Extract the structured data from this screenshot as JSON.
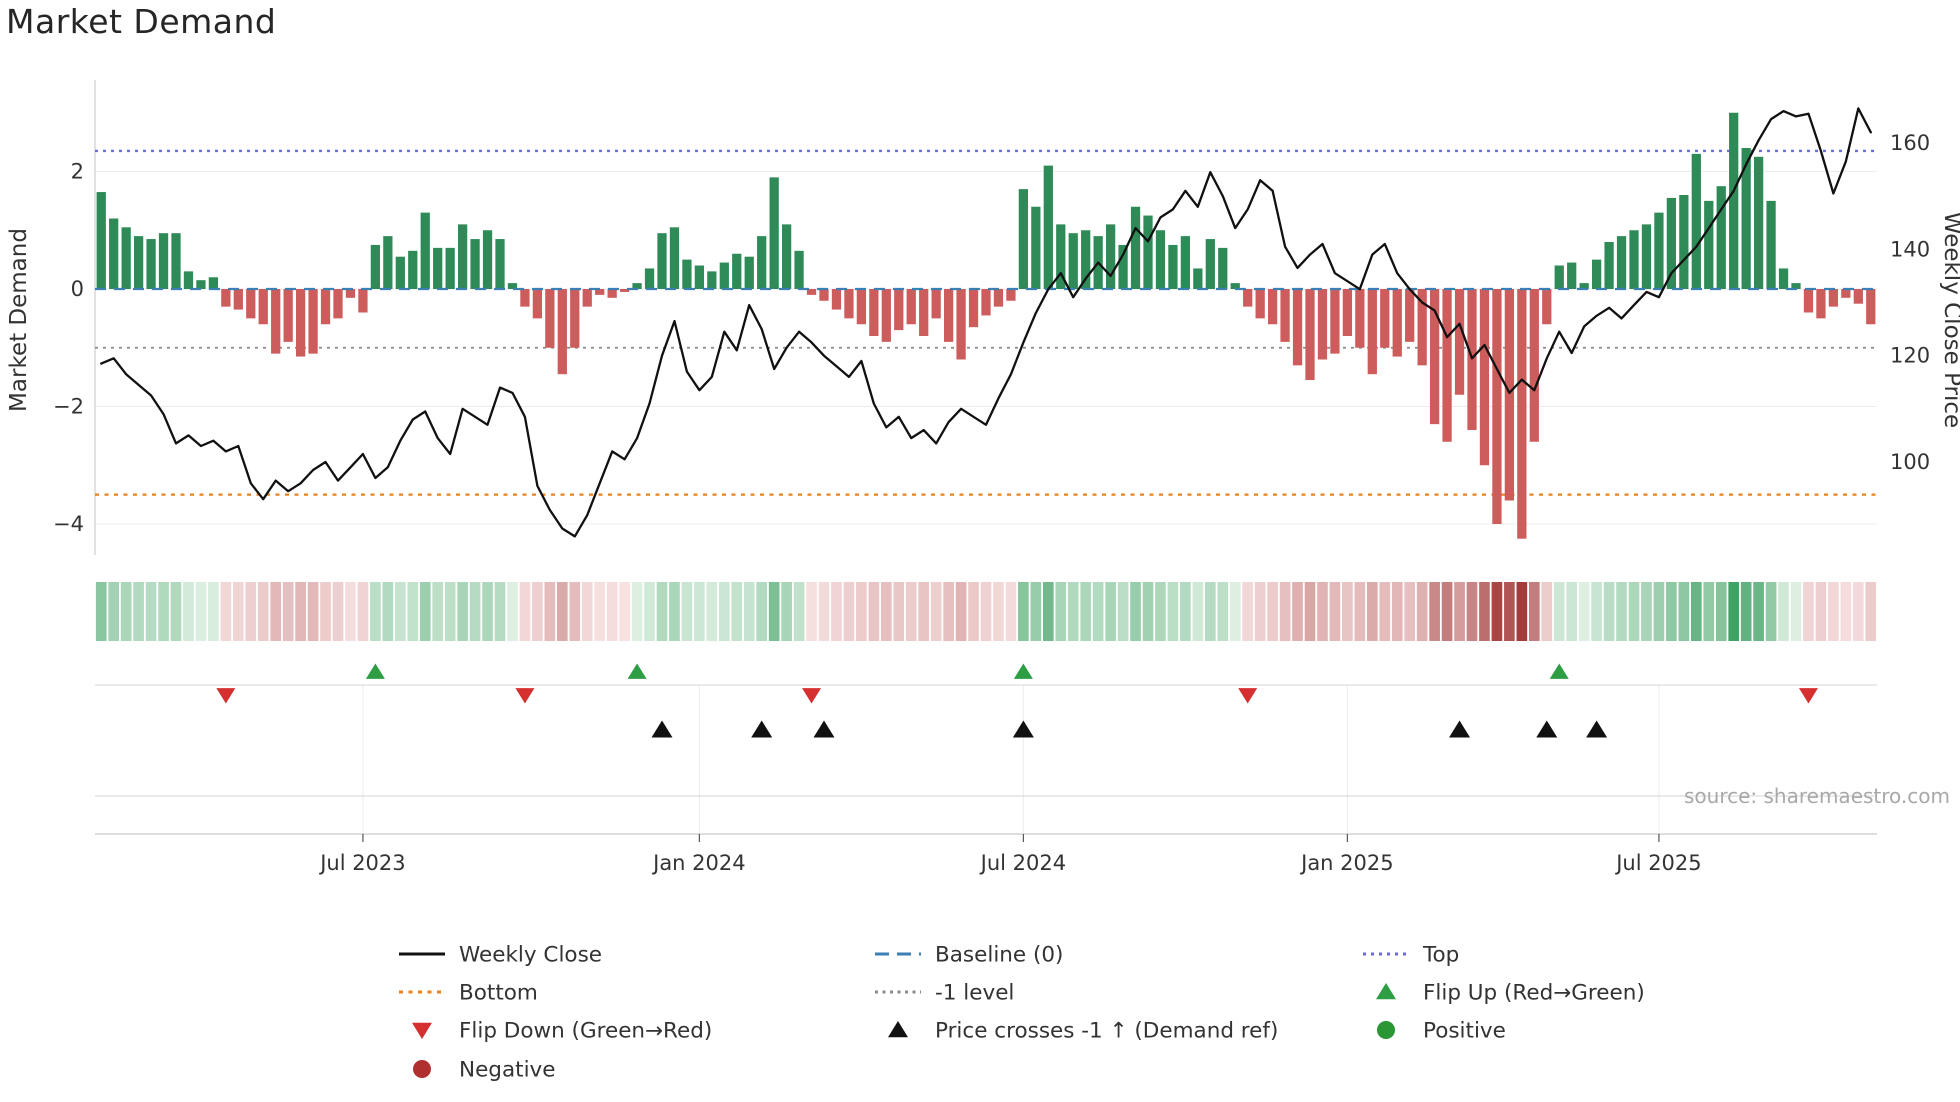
{
  "title": "Market Demand",
  "source_text": "source: sharemaestro.com",
  "axes": {
    "left_label": "Market Demand",
    "right_label": "Weekly Close Price",
    "left_ticks": [
      {
        "value": 2,
        "label": "2"
      },
      {
        "value": 0,
        "label": "0"
      },
      {
        "value": -2,
        "label": "−2"
      },
      {
        "value": -4,
        "label": "−4"
      }
    ],
    "right_ticks": [
      {
        "value": 160,
        "label": "160"
      },
      {
        "value": 140,
        "label": "140"
      },
      {
        "value": 120,
        "label": "120"
      },
      {
        "value": 100,
        "label": "100"
      }
    ],
    "x_ticks": [
      {
        "index": 21,
        "label": "Jul 2023"
      },
      {
        "index": 48,
        "label": "Jan 2024"
      },
      {
        "index": 74,
        "label": "Jul 2024"
      },
      {
        "index": 100,
        "label": "Jan 2025"
      },
      {
        "index": 125,
        "label": "Jul 2025"
      }
    ],
    "ylim_left": [
      -4.6,
      3.5
    ],
    "ylim_right": [
      82,
      172
    ],
    "grid": "horizontal-on"
  },
  "colors": {
    "bar_positive": "#2e8b57",
    "bar_negative": "#cd5c5c",
    "price_line": "#111111",
    "baseline": "#3b7fb5",
    "top_line": "#6b6bdb",
    "bottom_line": "#e8821c",
    "minus1_line": "#8a8a8a",
    "flip_up": "#2e9e44",
    "flip_down": "#d62f2f",
    "price_cross": "#111111",
    "positive_dot": "#2a9634",
    "negative_dot": "#b03030",
    "heat_pos_low": "#e3f2e6",
    "heat_pos_high": "#41a266",
    "heat_neg_low": "#f8e3e3",
    "heat_neg_high": "#a33c3c",
    "grid": "#ececec",
    "spine": "#cfcfcf",
    "tick_text": "#333333",
    "source_text": "#a8a8a8"
  },
  "chart_data": {
    "type": "combo",
    "n_points": 143,
    "legend_position": "bottom",
    "series": [
      {
        "name": "Market Demand",
        "type": "bar",
        "axis": "left",
        "values": [
          1.65,
          1.2,
          1.05,
          0.9,
          0.85,
          0.95,
          0.95,
          0.3,
          0.15,
          0.2,
          -0.3,
          -0.35,
          -0.5,
          -0.6,
          -1.1,
          -0.9,
          -1.15,
          -1.1,
          -0.6,
          -0.5,
          -0.15,
          -0.4,
          0.75,
          0.9,
          0.55,
          0.65,
          1.3,
          0.7,
          0.7,
          1.1,
          0.85,
          1.0,
          0.85,
          0.1,
          -0.3,
          -0.5,
          -1.0,
          -1.45,
          -1.0,
          -0.3,
          -0.1,
          -0.15,
          -0.05,
          0.1,
          0.35,
          0.95,
          1.05,
          0.5,
          0.4,
          0.3,
          0.45,
          0.6,
          0.55,
          0.9,
          1.9,
          1.1,
          0.65,
          -0.1,
          -0.2,
          -0.35,
          -0.5,
          -0.6,
          -0.8,
          -0.9,
          -0.7,
          -0.6,
          -0.8,
          -0.5,
          -0.9,
          -1.2,
          -0.65,
          -0.45,
          -0.3,
          -0.2,
          1.7,
          1.4,
          2.1,
          1.1,
          0.95,
          1.0,
          0.9,
          1.1,
          0.75,
          1.4,
          1.25,
          1.0,
          0.75,
          0.9,
          0.35,
          0.85,
          0.7,
          0.1,
          -0.3,
          -0.5,
          -0.6,
          -0.9,
          -1.3,
          -1.55,
          -1.2,
          -1.1,
          -0.8,
          -1.0,
          -1.45,
          -1.0,
          -1.15,
          -0.9,
          -1.3,
          -2.3,
          -2.6,
          -1.8,
          -2.4,
          -3.0,
          -4.0,
          -3.6,
          -4.25,
          -2.6,
          -0.6,
          0.4,
          0.45,
          0.1,
          0.5,
          0.8,
          0.9,
          1.0,
          1.1,
          1.3,
          1.55,
          1.6,
          2.3,
          1.5,
          1.75,
          3.0,
          2.4,
          2.25,
          1.5,
          0.35,
          0.1,
          -0.4,
          -0.5,
          -0.3,
          -0.15,
          -0.25,
          -0.6
        ]
      },
      {
        "name": "Weekly Close",
        "type": "line",
        "axis": "right",
        "values": [
          118.5,
          119.5,
          116.5,
          114.5,
          112.5,
          109,
          103.5,
          105,
          103,
          104,
          102,
          103,
          96,
          93,
          96.5,
          94.5,
          96,
          98.5,
          100,
          96.5,
          99,
          101.5,
          97,
          99,
          104,
          108,
          109.5,
          104.5,
          101.5,
          110,
          108.5,
          107,
          114,
          113,
          108.5,
          95.5,
          91,
          87.5,
          86,
          90,
          96,
          102,
          100.5,
          104.5,
          111,
          120,
          126.5,
          117,
          113.5,
          116,
          124.5,
          121,
          129.5,
          125,
          117.5,
          121.5,
          124.5,
          122.5,
          120,
          118,
          116,
          119,
          111,
          106.5,
          108.5,
          104.5,
          106,
          103.5,
          107.5,
          110,
          108.5,
          107,
          112,
          116.5,
          122.5,
          128,
          132.5,
          135.5,
          131,
          134.5,
          137.5,
          135,
          139,
          144,
          141.5,
          146,
          147.5,
          151,
          148,
          154.5,
          150,
          144,
          147.5,
          153,
          151,
          140.5,
          136.5,
          139,
          141,
          135.5,
          134,
          132.5,
          139,
          141,
          135.5,
          132.5,
          130,
          128.5,
          123.5,
          126,
          119.5,
          122,
          117.5,
          113,
          115.5,
          113.5,
          119.5,
          124.5,
          120.5,
          125.5,
          127.5,
          129,
          127,
          129.5,
          132,
          131,
          135.5,
          138,
          140.5,
          144,
          147.5,
          151,
          156,
          160.5,
          164.5,
          166,
          165,
          165.5,
          158.5,
          150.5,
          156.5,
          166.5,
          162
        ]
      }
    ],
    "reference_lines": [
      {
        "name": "Top",
        "value": 2.35,
        "style": "dotted",
        "color_key": "top_line"
      },
      {
        "name": "Bottom",
        "value": -3.5,
        "style": "dotted",
        "color_key": "bottom_line"
      },
      {
        "name": "-1 level",
        "value": -1,
        "style": "dotted",
        "color_key": "minus1_line"
      },
      {
        "name": "Baseline (0)",
        "value": 0,
        "style": "dashed",
        "color_key": "baseline"
      }
    ],
    "markers": {
      "flip_up_indices": [
        22,
        43,
        74,
        117
      ],
      "flip_down_indices": [
        10,
        34,
        57,
        92,
        137
      ],
      "price_cross_indices": [
        45,
        53,
        58,
        74,
        109,
        116,
        120
      ]
    },
    "heatmap_strip": "demand sign/magnitude per week, green positive, red negative"
  },
  "legend": {
    "rows": [
      [
        {
          "swatch": "line",
          "color_key": "price_line",
          "dash": null,
          "label": "Weekly Close"
        },
        {
          "swatch": "line",
          "color_key": "baseline",
          "dash": "14 8",
          "label": "Baseline (0)"
        },
        {
          "swatch": "line",
          "color_key": "top_line",
          "dash": "3 5",
          "label": "Top"
        }
      ],
      [
        {
          "swatch": "line",
          "color_key": "bottom_line",
          "dash": "4 5.5",
          "label": "Bottom"
        },
        {
          "swatch": "line",
          "color_key": "minus1_line",
          "dash": "3 4.5",
          "label": "-1 level"
        },
        {
          "swatch": "tri-up",
          "color_key": "flip_up",
          "dash": null,
          "label": "Flip Up (Red→Green)"
        }
      ],
      [
        {
          "swatch": "tri-down",
          "color_key": "flip_down",
          "dash": null,
          "label": "Flip Down (Green→Red)"
        },
        {
          "swatch": "tri-up",
          "color_key": "price_cross",
          "dash": null,
          "label": "Price crosses -1 ↑ (Demand ref)"
        },
        {
          "swatch": "circle",
          "color_key": "positive_dot",
          "dash": null,
          "label": "Positive"
        }
      ],
      [
        {
          "swatch": "circle",
          "color_key": "negative_dot",
          "dash": null,
          "label": "Negative"
        }
      ]
    ]
  }
}
